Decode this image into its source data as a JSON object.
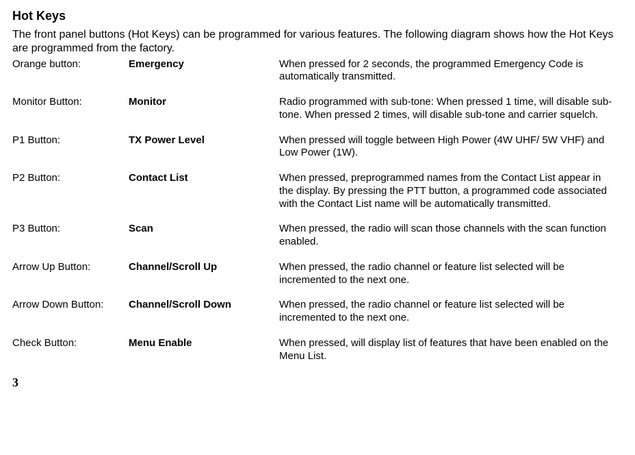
{
  "title": "Hot Keys",
  "intro": "The front panel buttons (Hot Keys) can be programmed for various features.  The following diagram shows how the Hot Keys are programmed from the factory.",
  "rows": [
    {
      "button": "Orange button:",
      "function": "Emergency",
      "desc": "When pressed for 2 seconds, the programmed Emergency Code is  automatically transmitted."
    },
    {
      "button": "Monitor Button:",
      "function": "Monitor",
      "desc": "Radio programmed with sub-tone: When pressed 1 time, will disable sub-tone.  When pressed 2 times, will disable sub-tone and carrier   squelch."
    },
    {
      "button": "P1 Button:",
      "function": "TX Power Level",
      "desc": "When pressed will toggle between High Power (4W UHF/ 5W VHF) and Low Power (1W)."
    },
    {
      "button": "P2 Button:",
      "function": "Contact List",
      "desc": "When pressed, preprogrammed names from the Contact List appear in the display.  By pressing the PTT button, a programmed code associated with the Contact List name will be automatically transmitted."
    },
    {
      "button": "P3 Button:",
      "function": "Scan",
      "desc": "When pressed, the radio will scan those channels with the scan function enabled."
    },
    {
      "button": "Arrow Up Button:",
      "function": "Channel/Scroll Up",
      "desc": "When pressed, the radio channel or feature list selected will be incremented to the next one."
    },
    {
      "button": "Arrow Down Button:",
      "function": "Channel/Scroll Down",
      "desc": "When pressed, the radio channel or feature list selected will be incremented to the next one."
    },
    {
      "button": "Check Button:",
      "function": "Menu Enable",
      "desc": "When pressed, will display list of features that have been enabled on the Menu List."
    }
  ],
  "pageNumber": "3"
}
